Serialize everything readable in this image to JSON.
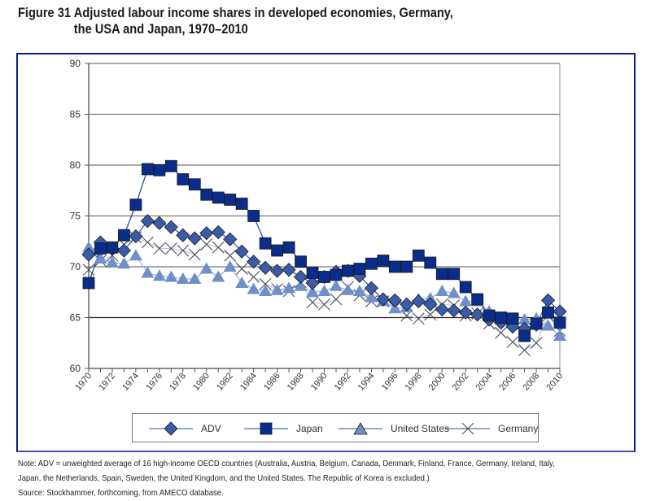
{
  "figure": {
    "number": "Figure 31",
    "title_line1": "Adjusted labour income shares in developed economies, Germany,",
    "title_line2": "the USA and Japan, 1970–2010"
  },
  "notes": {
    "note_line1": "Note: ADV = unweighted average of 16 high-income OECD countries (Australia, Austria, Belgium, Canada, Denmark, Finland, France, Germany, Ireland, Italy,",
    "note_line2": "Japan, the Netherlands, Spain, Sweden, the United Kingdom, and the United States. The Republic of Korea is excluded.)",
    "source": "Source: Stockhammer, forthcoming, from AMECO database."
  },
  "colors": {
    "frame": "#0b1f8a",
    "adv": "#3a5ba8",
    "japan": "#0a2d8c",
    "us": "#6f8fc8",
    "germany": "#555555",
    "line_adv": "#2e4ea0",
    "line_japan": "#1c3f9a",
    "line_us": "#9db3de",
    "line_germany": "#b8c7e6"
  },
  "chart_data": {
    "type": "line",
    "title": "Adjusted labour income shares in developed economies, Germany, the USA and Japan, 1970–2010",
    "xlabel": "",
    "ylabel": "",
    "ylim": [
      60,
      90
    ],
    "yticks": [
      60,
      65,
      70,
      75,
      80,
      85,
      90
    ],
    "xlim": [
      1970,
      2010
    ],
    "xtick_labels": [
      "1970",
      "1972",
      "1974",
      "1976",
      "1978",
      "1980",
      "1982",
      "1984",
      "1986",
      "1988",
      "1990",
      "1992",
      "1994",
      "1996",
      "1998",
      "2000",
      "2002",
      "2004",
      "2006",
      "2008",
      "2010"
    ],
    "grid": "horizontal",
    "legend_position": "bottom",
    "x": [
      1970,
      1971,
      1972,
      1973,
      1974,
      1975,
      1976,
      1977,
      1978,
      1979,
      1980,
      1981,
      1982,
      1983,
      1984,
      1985,
      1986,
      1987,
      1988,
      1989,
      1990,
      1991,
      1992,
      1993,
      1994,
      1995,
      1996,
      1997,
      1998,
      1999,
      2000,
      2001,
      2002,
      2003,
      2004,
      2005,
      2006,
      2007,
      2008,
      2009,
      2010
    ],
    "series": [
      {
        "name": "ADV",
        "marker": "diamond",
        "values": [
          71.2,
          72.4,
          71.8,
          71.6,
          73.0,
          74.5,
          74.3,
          73.9,
          73.1,
          72.8,
          73.3,
          73.4,
          72.7,
          71.5,
          70.5,
          69.9,
          69.6,
          69.7,
          69.0,
          68.4,
          69.0,
          69.5,
          69.6,
          69.1,
          67.9,
          66.8,
          66.7,
          66.3,
          66.6,
          66.3,
          65.8,
          65.7,
          65.5,
          65.3,
          64.8,
          64.5,
          64.1,
          63.9,
          64.3,
          66.7,
          65.6
        ]
      },
      {
        "name": "Japan",
        "marker": "square",
        "values": [
          68.4,
          71.8,
          71.9,
          73.1,
          76.1,
          79.6,
          79.5,
          79.9,
          78.6,
          78.1,
          77.1,
          76.8,
          76.6,
          76.2,
          75.0,
          72.3,
          71.6,
          71.9,
          70.5,
          69.4,
          69.0,
          69.2,
          69.6,
          69.8,
          70.3,
          70.6,
          70.0,
          70.0,
          71.1,
          70.4,
          69.3,
          69.3,
          68.0,
          66.8,
          65.2,
          65.0,
          64.9,
          63.2,
          64.4,
          65.5,
          64.5
        ]
      },
      {
        "name": "United States",
        "marker": "triangle",
        "values": [
          71.9,
          70.8,
          70.4,
          70.3,
          71.1,
          69.4,
          69.1,
          69.0,
          68.8,
          68.8,
          69.8,
          69.0,
          70.0,
          68.4,
          67.8,
          67.6,
          67.7,
          67.9,
          68.1,
          67.5,
          67.6,
          68.1,
          67.7,
          67.6,
          67.0,
          66.6,
          65.9,
          66.0,
          66.8,
          66.9,
          67.6,
          67.4,
          66.6,
          66.6,
          65.6,
          65.0,
          64.9,
          64.8,
          64.9,
          64.2,
          63.2
        ]
      },
      {
        "name": "Germany",
        "marker": "x",
        "values": [
          69.7,
          70.6,
          71.1,
          72.2,
          72.9,
          72.4,
          71.8,
          71.8,
          71.6,
          71.2,
          72.2,
          71.9,
          71.1,
          69.8,
          69.0,
          68.3,
          67.8,
          67.6,
          68.5,
          66.5,
          66.3,
          66.8,
          68.0,
          67.2,
          66.6,
          66.6,
          66.0,
          65.2,
          64.9,
          65.3,
          66.3,
          66.2,
          65.2,
          65.4,
          64.4,
          63.5,
          62.6,
          61.8,
          62.5,
          65.2,
          63.7
        ]
      }
    ]
  },
  "legend": {
    "items": [
      {
        "label": "ADV",
        "marker": "diamond"
      },
      {
        "label": "Japan",
        "marker": "square"
      },
      {
        "label": "United States",
        "marker": "triangle"
      },
      {
        "label": "Germany",
        "marker": "x"
      }
    ]
  }
}
